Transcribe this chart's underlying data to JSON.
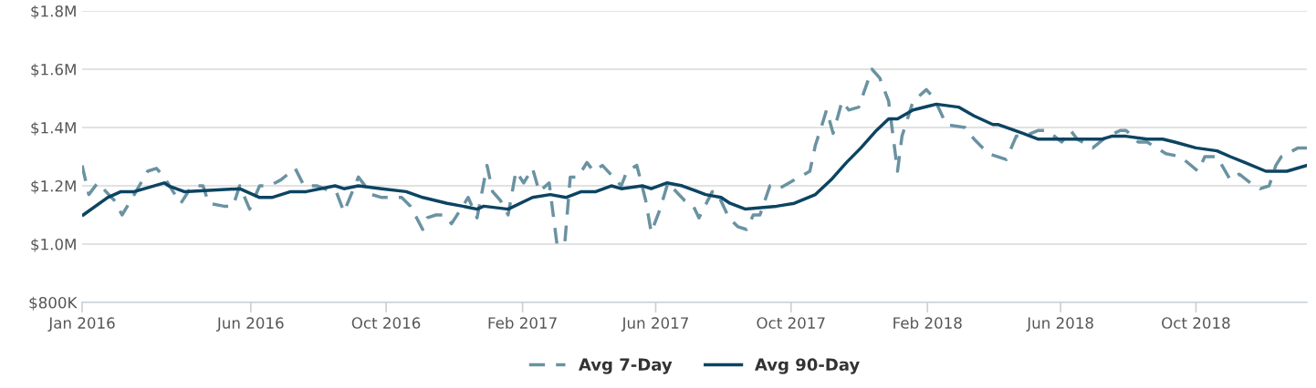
{
  "chart_data": {
    "type": "line",
    "legend": "bottom",
    "grid": "y",
    "xlim": [
      "2016-01-01",
      "2019-01-09"
    ],
    "xticks": [
      {
        "value": "2016-01-01",
        "label": "Jan 2016"
      },
      {
        "value": "2016-06-01",
        "label": "Jun 2016"
      },
      {
        "value": "2016-10-01",
        "label": "Oct 2016"
      },
      {
        "value": "2017-02-01",
        "label": "Feb 2017"
      },
      {
        "value": "2017-06-01",
        "label": "Jun 2017"
      },
      {
        "value": "2017-10-01",
        "label": "Oct 2017"
      },
      {
        "value": "2018-02-01",
        "label": "Feb 2018"
      },
      {
        "value": "2018-06-01",
        "label": "Jun 2018"
      },
      {
        "value": "2018-10-01",
        "label": "Oct 2018"
      }
    ],
    "ylim": [
      800000,
      1800000
    ],
    "yticks": [
      {
        "value": 800000,
        "label": "$800K"
      },
      {
        "value": 1000000,
        "label": "$1.0M"
      },
      {
        "value": 1200000,
        "label": "$1.2M"
      },
      {
        "value": 1400000,
        "label": "$1.4M"
      },
      {
        "value": 1600000,
        "label": "$1.6M"
      },
      {
        "value": 1800000,
        "label": "$1.8M"
      }
    ],
    "series": [
      {
        "name": "Avg 7-Day",
        "color": "#6a92a2",
        "line_style": "dashed",
        "x": [
          "2016-01-01",
          "2016-01-07",
          "2016-01-15",
          "2016-01-30",
          "2016-02-06",
          "2016-02-17",
          "2016-02-29",
          "2016-03-08",
          "2016-03-15",
          "2016-03-23",
          "2016-03-30",
          "2016-04-09",
          "2016-04-19",
          "2016-04-24",
          "2016-05-08",
          "2016-05-16",
          "2016-05-22",
          "2016-05-31",
          "2016-06-09",
          "2016-06-18",
          "2016-06-28",
          "2016-07-11",
          "2016-07-19",
          "2016-07-31",
          "2016-08-13",
          "2016-08-17",
          "2016-08-24",
          "2016-09-06",
          "2016-09-18",
          "2016-09-27",
          "2016-10-15",
          "2016-10-23",
          "2016-11-03",
          "2016-11-07",
          "2016-11-15",
          "2016-11-23",
          "2016-11-29",
          "2016-12-14",
          "2016-12-22",
          "2016-12-31",
          "2017-01-05",
          "2017-01-12",
          "2017-01-19",
          "2017-01-26",
          "2017-02-02",
          "2017-02-10",
          "2017-02-16",
          "2017-02-25",
          "2017-03-04",
          "2017-03-11",
          "2017-03-16",
          "2017-03-23",
          "2017-03-31",
          "2017-04-06",
          "2017-04-14",
          "2017-05-01",
          "2017-05-06",
          "2017-05-15",
          "2017-05-23",
          "2017-05-28",
          "2017-06-05",
          "2017-06-12",
          "2017-06-27",
          "2017-07-05",
          "2017-07-10",
          "2017-07-22",
          "2017-07-26",
          "2017-08-06",
          "2017-08-14",
          "2017-08-22",
          "2017-08-28",
          "2017-09-03",
          "2017-09-12",
          "2017-09-20",
          "2017-10-04",
          "2017-10-18",
          "2017-10-23",
          "2017-10-29",
          "2017-11-02",
          "2017-11-08",
          "2017-11-16",
          "2017-11-22",
          "2017-12-01",
          "2017-12-13",
          "2017-12-20",
          "2017-12-28",
          "2018-01-01",
          "2018-01-05",
          "2018-01-09",
          "2018-01-19",
          "2018-01-31",
          "2018-02-07",
          "2018-02-18",
          "2018-03-07",
          "2018-03-15",
          "2018-03-28",
          "2018-04-13",
          "2018-04-22",
          "2018-04-29",
          "2018-05-12",
          "2018-05-20",
          "2018-06-02",
          "2018-06-10",
          "2018-06-16",
          "2018-06-30",
          "2018-07-13",
          "2018-07-25",
          "2018-07-30",
          "2018-08-10",
          "2018-08-18",
          "2018-09-04",
          "2018-09-17",
          "2018-10-03",
          "2018-10-09",
          "2018-10-20",
          "2018-11-01",
          "2018-11-09",
          "2018-11-19",
          "2018-11-28",
          "2018-12-06",
          "2018-12-12",
          "2018-12-17",
          "2019-01-01",
          "2019-01-09"
        ],
        "values": [
          1270000,
          1170000,
          1210000,
          1150000,
          1100000,
          1170000,
          1250000,
          1260000,
          1230000,
          1180000,
          1140000,
          1200000,
          1200000,
          1140000,
          1130000,
          1130000,
          1200000,
          1120000,
          1200000,
          1200000,
          1220000,
          1260000,
          1200000,
          1200000,
          1180000,
          1180000,
          1110000,
          1230000,
          1170000,
          1160000,
          1160000,
          1130000,
          1050000,
          1090000,
          1100000,
          1100000,
          1070000,
          1160000,
          1090000,
          1270000,
          1180000,
          1150000,
          1100000,
          1250000,
          1210000,
          1260000,
          1180000,
          1210000,
          1000000,
          1000000,
          1230000,
          1230000,
          1280000,
          1250000,
          1270000,
          1200000,
          1250000,
          1270000,
          1150000,
          1040000,
          1120000,
          1210000,
          1150000,
          1130000,
          1090000,
          1180000,
          1180000,
          1090000,
          1060000,
          1050000,
          1100000,
          1100000,
          1200000,
          1190000,
          1220000,
          1250000,
          1340000,
          1410000,
          1460000,
          1380000,
          1490000,
          1460000,
          1470000,
          1600000,
          1570000,
          1490000,
          1370000,
          1250000,
          1370000,
          1490000,
          1530000,
          1500000,
          1410000,
          1400000,
          1360000,
          1310000,
          1290000,
          1370000,
          1370000,
          1390000,
          1390000,
          1350000,
          1390000,
          1360000,
          1330000,
          1370000,
          1390000,
          1390000,
          1350000,
          1350000,
          1310000,
          1300000,
          1250000,
          1300000,
          1300000,
          1220000,
          1240000,
          1210000,
          1190000,
          1200000,
          1270000,
          1300000,
          1330000,
          1330000
        ]
      },
      {
        "name": "Avg 90-Day",
        "color": "#0c4462",
        "line_style": "solid",
        "x": [
          "2016-01-02",
          "2016-01-24",
          "2016-02-05",
          "2016-02-17",
          "2016-03-15",
          "2016-03-19",
          "2016-04-02",
          "2016-05-22",
          "2016-06-09",
          "2016-06-20",
          "2016-07-07",
          "2016-07-21",
          "2016-08-16",
          "2016-08-24",
          "2016-09-06",
          "2016-09-27",
          "2016-10-19",
          "2016-11-03",
          "2016-11-25",
          "2016-12-09",
          "2016-12-22",
          "2016-12-28",
          "2017-01-19",
          "2017-02-10",
          "2017-02-26",
          "2017-03-12",
          "2017-03-26",
          "2017-04-08",
          "2017-04-22",
          "2017-05-01",
          "2017-05-20",
          "2017-05-28",
          "2017-06-11",
          "2017-06-25",
          "2017-07-16",
          "2017-07-30",
          "2017-08-07",
          "2017-08-21",
          "2017-09-18",
          "2017-10-04",
          "2017-10-23",
          "2017-11-06",
          "2017-11-20",
          "2017-12-03",
          "2017-12-17",
          "2017-12-28",
          "2018-01-05",
          "2018-01-19",
          "2018-02-09",
          "2018-03-01",
          "2018-03-15",
          "2018-04-01",
          "2018-04-06",
          "2018-04-28",
          "2018-05-12",
          "2018-06-02",
          "2018-06-24",
          "2018-07-08",
          "2018-07-17",
          "2018-07-30",
          "2018-08-18",
          "2018-09-01",
          "2018-09-12",
          "2018-10-01",
          "2018-10-20",
          "2018-11-01",
          "2018-11-14",
          "2018-12-03",
          "2018-12-22",
          "2019-01-09"
        ],
        "values": [
          1100000,
          1160000,
          1180000,
          1180000,
          1210000,
          1200000,
          1180000,
          1190000,
          1160000,
          1160000,
          1180000,
          1180000,
          1200000,
          1190000,
          1200000,
          1190000,
          1180000,
          1160000,
          1140000,
          1130000,
          1120000,
          1130000,
          1120000,
          1160000,
          1170000,
          1160000,
          1180000,
          1180000,
          1200000,
          1190000,
          1200000,
          1190000,
          1210000,
          1200000,
          1170000,
          1160000,
          1140000,
          1120000,
          1130000,
          1140000,
          1170000,
          1220000,
          1280000,
          1330000,
          1390000,
          1430000,
          1430000,
          1460000,
          1480000,
          1470000,
          1440000,
          1410000,
          1410000,
          1380000,
          1360000,
          1360000,
          1360000,
          1360000,
          1370000,
          1370000,
          1360000,
          1360000,
          1350000,
          1330000,
          1320000,
          1300000,
          1280000,
          1250000,
          1250000,
          1270000
        ]
      }
    ]
  }
}
